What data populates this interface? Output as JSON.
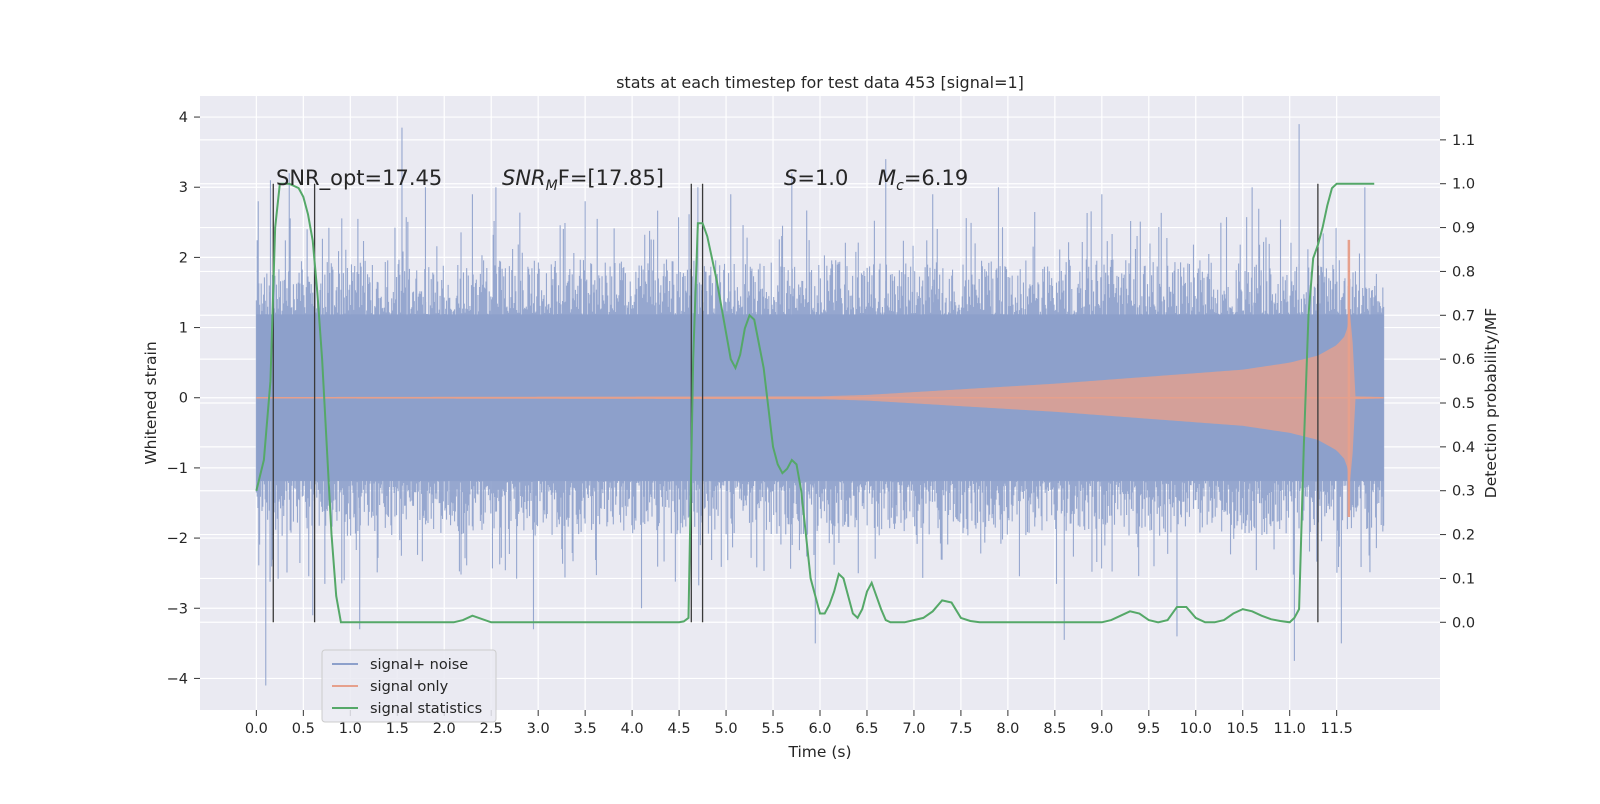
{
  "chart_data": {
    "type": "line",
    "title": "stats at each timestep for test data 453 [signal=1]",
    "xlabel": "Time (s)",
    "ylabel_left": "Whitened strain",
    "ylabel_right": "Detection probability/MF",
    "xlim": [
      -0.6,
      12.6
    ],
    "ylim_left": [
      -4.45,
      4.3
    ],
    "ylim_right": [
      -0.2,
      1.2
    ],
    "x_ticks": [
      "0.0",
      "0.5",
      "1.0",
      "1.5",
      "2.0",
      "2.5",
      "3.0",
      "3.5",
      "4.0",
      "4.5",
      "5.0",
      "5.5",
      "6.0",
      "6.5",
      "7.0",
      "7.5",
      "8.0",
      "8.5",
      "9.0",
      "9.5",
      "10.0",
      "10.5",
      "11.0",
      "11.5"
    ],
    "y_ticks_left": [
      "4",
      "3",
      "2",
      "1",
      "0",
      "−1",
      "−2",
      "−3",
      "−4"
    ],
    "y_ticks_right": [
      "1.1",
      "1.0",
      "0.9",
      "0.8",
      "0.7",
      "0.6",
      "0.5",
      "0.4",
      "0.3",
      "0.2",
      "0.1",
      "0.0"
    ],
    "grid": true,
    "legend_position": "lower-left",
    "annotations": {
      "snr_opt": "SNR_opt=17.45",
      "snr_mf_prefix": "SNR",
      "snr_mf_sub": "M",
      "snr_mf_suffix": "F=[17.85]",
      "s_label": "S",
      "s_value": "=1.0",
      "mc_label": "M",
      "mc_sub": "c",
      "mc_value": "=6.19"
    },
    "colors": {
      "background": "#eaeaf2",
      "grid": "#ffffff",
      "noise": "#8da0cb",
      "signal": "#e6a08c",
      "statistics": "#55a868",
      "markers": "#3a3a3a"
    },
    "vertical_markers_x": [
      0.18,
      0.62,
      4.63,
      4.75,
      11.3
    ],
    "series": [
      {
        "name": "signal+ noise",
        "axis": "left",
        "envelope": {
          "x": [
            0.0,
            1.0,
            2.0,
            3.0,
            4.0,
            5.0,
            6.0,
            7.0,
            8.0,
            9.0,
            10.0,
            11.0,
            11.6,
            12.0
          ],
          "high": [
            1.8,
            1.8,
            1.8,
            1.8,
            1.8,
            1.8,
            1.8,
            1.8,
            1.8,
            1.8,
            1.8,
            1.8,
            1.8,
            1.8
          ],
          "low": [
            -1.8,
            -1.8,
            -1.8,
            -1.8,
            -1.8,
            -1.8,
            -1.8,
            -1.8,
            -1.8,
            -1.8,
            -1.8,
            -1.8,
            -1.8,
            -1.8
          ]
        },
        "peaks": [
          {
            "x": 0.02,
            "y": 2.8
          },
          {
            "x": 0.15,
            "y": 3.1
          },
          {
            "x": 0.1,
            "y": -4.1
          },
          {
            "x": 0.35,
            "y": 3.2
          },
          {
            "x": 0.6,
            "y": -3.1
          },
          {
            "x": 1.1,
            "y": -3.3
          },
          {
            "x": 1.55,
            "y": 3.85
          },
          {
            "x": 1.8,
            "y": 3.0
          },
          {
            "x": 2.3,
            "y": 2.9
          },
          {
            "x": 2.55,
            "y": 3.0
          },
          {
            "x": 2.95,
            "y": -3.3
          },
          {
            "x": 3.5,
            "y": 2.8
          },
          {
            "x": 4.1,
            "y": -3.0
          },
          {
            "x": 4.7,
            "y": 3.0
          },
          {
            "x": 5.05,
            "y": 2.9
          },
          {
            "x": 5.7,
            "y": 3.2
          },
          {
            "x": 5.95,
            "y": -3.5
          },
          {
            "x": 6.7,
            "y": 3.4
          },
          {
            "x": 7.2,
            "y": 2.9
          },
          {
            "x": 7.9,
            "y": 3.0
          },
          {
            "x": 8.6,
            "y": -3.45
          },
          {
            "x": 9.0,
            "y": 2.9
          },
          {
            "x": 9.8,
            "y": -3.4
          },
          {
            "x": 10.6,
            "y": 3.0
          },
          {
            "x": 11.05,
            "y": -3.75
          },
          {
            "x": 11.1,
            "y": 3.9
          },
          {
            "x": 11.55,
            "y": -3.5
          },
          {
            "x": 11.8,
            "y": 3.0
          }
        ]
      },
      {
        "name": "signal only",
        "axis": "left",
        "envelope": {
          "x": [
            0.0,
            6.0,
            6.5,
            7.0,
            7.5,
            8.0,
            8.5,
            9.0,
            9.5,
            10.0,
            10.5,
            11.0,
            11.3,
            11.5,
            11.6,
            11.65,
            11.7,
            12.0
          ],
          "amplitude": [
            0.01,
            0.02,
            0.04,
            0.08,
            0.12,
            0.16,
            0.2,
            0.25,
            0.3,
            0.35,
            0.4,
            0.5,
            0.6,
            0.75,
            0.9,
            1.3,
            0.02,
            0.01
          ]
        },
        "peak": {
          "x": 11.63,
          "high": 2.25,
          "low": -1.7
        }
      },
      {
        "name": "signal statistics",
        "axis": "right",
        "x": [
          0.0,
          0.08,
          0.15,
          0.2,
          0.25,
          0.3,
          0.35,
          0.45,
          0.5,
          0.55,
          0.6,
          0.65,
          0.7,
          0.75,
          0.8,
          0.85,
          0.9,
          1.0,
          1.2,
          1.5,
          2.0,
          2.1,
          2.2,
          2.3,
          2.5,
          3.0,
          4.0,
          4.5,
          4.55,
          4.6,
          4.65,
          4.7,
          4.75,
          4.8,
          4.9,
          5.0,
          5.05,
          5.1,
          5.15,
          5.2,
          5.25,
          5.3,
          5.4,
          5.5,
          5.55,
          5.6,
          5.65,
          5.7,
          5.75,
          5.8,
          5.9,
          6.0,
          6.05,
          6.1,
          6.15,
          6.2,
          6.25,
          6.3,
          6.35,
          6.4,
          6.45,
          6.5,
          6.55,
          6.6,
          6.65,
          6.7,
          6.75,
          6.8,
          6.9,
          7.0,
          7.1,
          7.2,
          7.3,
          7.4,
          7.5,
          7.6,
          7.7,
          8.0,
          8.4,
          8.5,
          8.6,
          8.7,
          8.9,
          9.0,
          9.1,
          9.2,
          9.3,
          9.4,
          9.5,
          9.6,
          9.7,
          9.8,
          9.9,
          10.0,
          10.1,
          10.2,
          10.3,
          10.4,
          10.5,
          10.6,
          10.7,
          10.8,
          10.9,
          11.0,
          11.05,
          11.1,
          11.15,
          11.2,
          11.25,
          11.3,
          11.35,
          11.4,
          11.45,
          11.5,
          11.6,
          11.7,
          11.8,
          11.9
        ],
        "values": [
          0.3,
          0.37,
          0.55,
          0.9,
          1.0,
          1.0,
          1.0,
          0.99,
          0.97,
          0.93,
          0.87,
          0.75,
          0.6,
          0.4,
          0.2,
          0.06,
          0.0,
          0.0,
          0.0,
          0.0,
          0.0,
          0.0,
          0.005,
          0.015,
          0.0,
          0.0,
          0.0,
          0.0,
          0.002,
          0.01,
          0.6,
          0.91,
          0.91,
          0.88,
          0.78,
          0.66,
          0.6,
          0.58,
          0.61,
          0.67,
          0.7,
          0.69,
          0.58,
          0.4,
          0.36,
          0.34,
          0.35,
          0.37,
          0.36,
          0.3,
          0.1,
          0.02,
          0.02,
          0.04,
          0.07,
          0.11,
          0.1,
          0.06,
          0.02,
          0.01,
          0.03,
          0.07,
          0.09,
          0.06,
          0.03,
          0.005,
          0.0,
          0.0,
          0.0,
          0.005,
          0.01,
          0.025,
          0.05,
          0.045,
          0.01,
          0.003,
          0.0,
          0.0,
          0.0,
          0.0,
          0.0,
          0.0,
          0.0,
          0.0,
          0.005,
          0.015,
          0.025,
          0.02,
          0.005,
          0.0,
          0.005,
          0.035,
          0.035,
          0.01,
          0.0,
          0.0,
          0.005,
          0.02,
          0.03,
          0.025,
          0.015,
          0.007,
          0.003,
          0.0,
          0.01,
          0.03,
          0.4,
          0.7,
          0.83,
          0.86,
          0.9,
          0.95,
          0.99,
          1.0,
          1.0,
          1.0,
          1.0,
          1.0
        ]
      }
    ]
  }
}
